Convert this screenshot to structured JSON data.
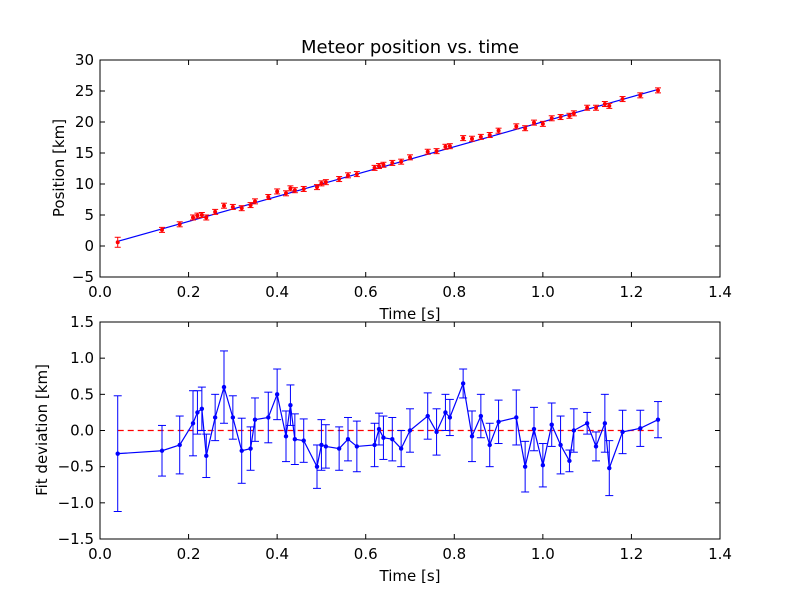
{
  "chart_data": [
    {
      "type": "scatter",
      "title": "Meteor position vs. time",
      "xlabel": "Time [s]",
      "ylabel": "Position [km]",
      "xlim": [
        0.0,
        1.4
      ],
      "ylim": [
        -5,
        30
      ],
      "xticks": [
        "0.0",
        "0.2",
        "0.4",
        "0.6",
        "0.8",
        "1.0",
        "1.2",
        "1.4"
      ],
      "yticks": [
        "−5",
        "0",
        "5",
        "10",
        "15",
        "20",
        "25",
        "30"
      ],
      "grid": false,
      "series": [
        {
          "marker_color": "#ff0000",
          "x": [
            0.04,
            0.14,
            0.18,
            0.21,
            0.22,
            0.23,
            0.24,
            0.26,
            0.28,
            0.3,
            0.32,
            0.34,
            0.35,
            0.38,
            0.4,
            0.42,
            0.43,
            0.44,
            0.46,
            0.49,
            0.5,
            0.51,
            0.54,
            0.56,
            0.58,
            0.62,
            0.63,
            0.64,
            0.66,
            0.68,
            0.7,
            0.74,
            0.76,
            0.78,
            0.79,
            0.82,
            0.84,
            0.86,
            0.88,
            0.9,
            0.94,
            0.96,
            0.98,
            1.0,
            1.02,
            1.04,
            1.06,
            1.07,
            1.1,
            1.12,
            1.14,
            1.15,
            1.18,
            1.22,
            1.26
          ],
          "y": [
            0.6,
            2.6,
            3.5,
            4.6,
            4.9,
            5.0,
            4.6,
            5.5,
            6.5,
            6.3,
            6.1,
            6.6,
            7.2,
            7.9,
            8.8,
            8.5,
            9.3,
            9.0,
            9.2,
            9.5,
            10.1,
            10.3,
            10.8,
            11.4,
            11.6,
            12.6,
            12.9,
            13.1,
            13.4,
            13.6,
            14.3,
            15.2,
            15.3,
            16.0,
            16.1,
            17.4,
            17.3,
            17.6,
            17.9,
            18.6,
            19.3,
            19.0,
            19.9,
            19.7,
            20.6,
            20.8,
            21.0,
            21.4,
            22.3,
            22.3,
            22.9,
            22.6,
            23.7,
            24.3,
            25.1
          ]
        },
        {
          "line_color": "#0000ff",
          "x": [
            0.04,
            1.26
          ],
          "y": [
            0.75,
            25.25
          ]
        }
      ]
    },
    {
      "type": "line",
      "title": "",
      "xlabel": "Time [s]",
      "ylabel": "Fit deviation [km]",
      "xlim": [
        0.0,
        1.4
      ],
      "ylim": [
        -1.5,
        1.5
      ],
      "xticks": [
        "0.0",
        "0.2",
        "0.4",
        "0.6",
        "0.8",
        "1.0",
        "1.2",
        "1.4"
      ],
      "yticks": [
        "−1.5",
        "−1.0",
        "−0.5",
        "0.0",
        "0.5",
        "1.0",
        "1.5"
      ],
      "grid": false,
      "reference_line": {
        "y": 0.0,
        "x_range": [
          0.04,
          1.26
        ],
        "style": "dashed",
        "color": "#ff0000"
      },
      "series": [
        {
          "color": "#0000ff",
          "x": [
            0.04,
            0.14,
            0.18,
            0.21,
            0.22,
            0.23,
            0.24,
            0.26,
            0.28,
            0.3,
            0.32,
            0.34,
            0.35,
            0.38,
            0.4,
            0.42,
            0.43,
            0.44,
            0.46,
            0.49,
            0.5,
            0.51,
            0.54,
            0.56,
            0.58,
            0.62,
            0.63,
            0.64,
            0.66,
            0.68,
            0.7,
            0.74,
            0.76,
            0.78,
            0.79,
            0.82,
            0.84,
            0.86,
            0.88,
            0.9,
            0.94,
            0.96,
            0.98,
            1.0,
            1.02,
            1.04,
            1.06,
            1.07,
            1.1,
            1.12,
            1.14,
            1.15,
            1.18,
            1.22,
            1.26
          ],
          "y": [
            -0.32,
            -0.28,
            -0.2,
            0.1,
            0.25,
            0.3,
            -0.35,
            0.18,
            0.6,
            0.18,
            -0.28,
            -0.25,
            0.15,
            0.18,
            0.5,
            -0.08,
            0.35,
            -0.12,
            -0.14,
            -0.5,
            -0.2,
            -0.22,
            -0.25,
            -0.12,
            -0.22,
            -0.2,
            0.02,
            -0.1,
            -0.12,
            -0.25,
            0.0,
            0.2,
            -0.02,
            0.25,
            0.18,
            0.65,
            -0.08,
            0.2,
            -0.2,
            0.12,
            0.18,
            -0.5,
            0.02,
            -0.48,
            0.08,
            -0.2,
            -0.42,
            0.0,
            0.1,
            -0.22,
            0.1,
            -0.52,
            -0.02,
            0.03,
            0.15
          ],
          "error": [
            0.8,
            0.35,
            0.4,
            0.45,
            0.3,
            0.3,
            0.3,
            0.32,
            0.5,
            0.3,
            0.45,
            0.3,
            0.3,
            0.35,
            0.35,
            0.35,
            0.28,
            0.35,
            0.3,
            0.3,
            0.35,
            0.3,
            0.3,
            0.3,
            0.35,
            0.3,
            0.22,
            0.3,
            0.3,
            0.25,
            0.3,
            0.32,
            0.32,
            0.25,
            0.25,
            0.2,
            0.35,
            0.3,
            0.3,
            0.3,
            0.38,
            0.35,
            0.3,
            0.3,
            0.3,
            0.4,
            0.15,
            0.3,
            0.15,
            0.2,
            0.4,
            0.38,
            0.3,
            0.25,
            0.25
          ]
        }
      ]
    }
  ]
}
